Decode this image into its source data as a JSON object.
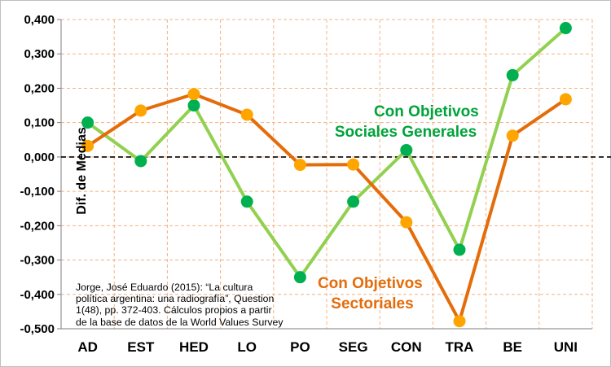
{
  "chart_data": {
    "type": "line",
    "title": "",
    "xlabel": "",
    "ylabel": "Dif. de Medias",
    "categories": [
      "AD",
      "EST",
      "HED",
      "LO",
      "PO",
      "SEG",
      "CON",
      "TRA",
      "BE",
      "UNI"
    ],
    "ylim": [
      -0.5,
      0.4
    ],
    "yticks": [
      0.4,
      0.3,
      0.2,
      0.1,
      0.0,
      -0.1,
      -0.2,
      -0.3,
      -0.4,
      -0.5
    ],
    "ytick_labels": [
      "0,400",
      "0,300",
      "0,200",
      "0,100",
      "0,000",
      "-0,100",
      "-0,200",
      "-0,300",
      "-0,400",
      "-0,500"
    ],
    "reference_line": {
      "y": 0.0,
      "style": "dashed",
      "color": "#000000"
    },
    "grid": true,
    "series": [
      {
        "name": "Con Objetivos Sociales Generales",
        "label_lines": [
          "Con Objetivos",
          "Sociales Generales"
        ],
        "line_color": "#92d050",
        "marker_color": "#00b050",
        "label_color": "#00a33b",
        "values": [
          0.1,
          -0.012,
          0.15,
          -0.13,
          -0.35,
          -0.13,
          0.02,
          -0.27,
          0.238,
          0.375
        ]
      },
      {
        "name": "Con Objetivos Sectoriales",
        "label_lines": [
          "Con Objetivos",
          "Sectoriales"
        ],
        "line_color": "#e46c0a",
        "marker_color": "#ffa500",
        "label_color": "#e46c0a",
        "values": [
          0.032,
          0.135,
          0.183,
          0.123,
          -0.023,
          -0.022,
          -0.19,
          -0.478,
          0.062,
          0.168
        ]
      }
    ],
    "annotations": {
      "source_lines": [
        "Jorge, José Eduardo (2015): “La cultura",
        "política argentina: una radiografía”, Question",
        "1(48), pp. 372-403. Cálculos propios a partir",
        "de la base de datos de la World Values Survey"
      ]
    }
  },
  "colors": {
    "grid": "#f4b183",
    "axis": "#7f7f7f",
    "frame": "#bfbfbf"
  }
}
